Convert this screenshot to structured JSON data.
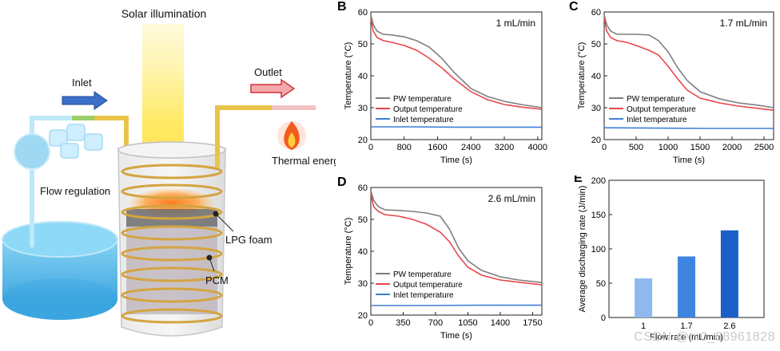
{
  "illustration": {
    "solar_label": "Solar illumination",
    "inlet_label": "Inlet",
    "outlet_label": "Outlet",
    "flow_label": "Flow regulation",
    "thermal_label": "Thermal energy",
    "lpg_label": "LPG foam",
    "pcm_label": "PCM"
  },
  "watermark": "CSDN @m0_68961828",
  "chart_data": [
    {
      "panel": "B",
      "type": "line",
      "annotation": "1 mL/min",
      "xlabel": "Time (s)",
      "ylabel": "Temperature (°C)",
      "xlim": [
        0,
        4100
      ],
      "ylim": [
        20,
        60
      ],
      "xticks": [
        0,
        800,
        1600,
        2400,
        3200,
        4000
      ],
      "yticks": [
        20,
        30,
        40,
        50,
        60
      ],
      "legend_position": "bottom-left",
      "series": [
        {
          "name": "PW temperature",
          "color": "#7f7f7f",
          "x": [
            0,
            60,
            150,
            300,
            500,
            800,
            1100,
            1400,
            1700,
            2000,
            2400,
            2800,
            3200,
            3600,
            4100
          ],
          "y": [
            59,
            56,
            54,
            53,
            52.8,
            52.2,
            51,
            49,
            45.5,
            41,
            36,
            33.5,
            32,
            31,
            30
          ]
        },
        {
          "name": "Output temperature",
          "color": "#e8464b",
          "x": [
            0,
            60,
            150,
            300,
            500,
            800,
            1100,
            1400,
            1700,
            2000,
            2400,
            2800,
            3200,
            3600,
            4100
          ],
          "y": [
            58,
            54,
            52,
            51,
            50.5,
            49.5,
            48,
            45.5,
            42.5,
            39,
            35,
            32.5,
            31,
            30.2,
            29.5
          ]
        },
        {
          "name": "Inlet temperature",
          "color": "#3f7fd6",
          "x": [
            0,
            1000,
            2000,
            3000,
            4100
          ],
          "y": [
            24,
            24,
            23.9,
            23.9,
            23.9
          ]
        }
      ]
    },
    {
      "panel": "C",
      "type": "line",
      "annotation": "1.7 mL/min",
      "xlabel": "Time (s)",
      "ylabel": "Temperature (°C)",
      "xlim": [
        0,
        2650
      ],
      "ylim": [
        20,
        60
      ],
      "xticks": [
        0,
        500,
        1000,
        1500,
        2000,
        2500
      ],
      "yticks": [
        20,
        30,
        40,
        50,
        60
      ],
      "legend_position": "bottom-left",
      "series": [
        {
          "name": "PW temperature",
          "color": "#7f7f7f",
          "x": [
            0,
            40,
            100,
            200,
            350,
            500,
            700,
            850,
            1000,
            1150,
            1300,
            1500,
            1800,
            2100,
            2400,
            2650
          ],
          "y": [
            59,
            56,
            54,
            53,
            53,
            53,
            52.8,
            51,
            47.5,
            42.5,
            38.5,
            35,
            32.8,
            31.5,
            30.8,
            30
          ]
        },
        {
          "name": "Output temperature",
          "color": "#e8464b",
          "x": [
            0,
            40,
            100,
            200,
            350,
            500,
            700,
            850,
            1000,
            1150,
            1300,
            1500,
            1800,
            2100,
            2400,
            2650
          ],
          "y": [
            58,
            54,
            52,
            51,
            50.5,
            49.5,
            48,
            46.5,
            43,
            39,
            35.5,
            33,
            31.5,
            30.5,
            29.8,
            29.2
          ]
        },
        {
          "name": "Inlet temperature",
          "color": "#3f7fd6",
          "x": [
            0,
            800,
            1600,
            2650
          ],
          "y": [
            23.7,
            23.6,
            23.5,
            23.5
          ]
        }
      ]
    },
    {
      "panel": "D",
      "type": "line",
      "annotation": "2.6 mL/min",
      "xlabel": "Time (s)",
      "ylabel": "Temperature (°C)",
      "xlim": [
        0,
        1850
      ],
      "ylim": [
        20,
        60
      ],
      "xticks": [
        0,
        350,
        700,
        1050,
        1400,
        1750
      ],
      "yticks": [
        20,
        30,
        40,
        50,
        60
      ],
      "legend_position": "bottom-left",
      "series": [
        {
          "name": "PW temperature",
          "color": "#7f7f7f",
          "x": [
            0,
            30,
            80,
            150,
            300,
            450,
            600,
            750,
            850,
            950,
            1050,
            1200,
            1400,
            1600,
            1850
          ],
          "y": [
            59,
            56,
            54,
            53,
            52.8,
            52.5,
            52,
            51,
            47,
            41,
            37,
            34,
            32,
            31,
            30.2
          ]
        },
        {
          "name": "Output temperature",
          "color": "#e8464b",
          "x": [
            0,
            30,
            80,
            150,
            300,
            450,
            600,
            750,
            850,
            950,
            1050,
            1200,
            1400,
            1600,
            1850
          ],
          "y": [
            58,
            54,
            52.5,
            51.5,
            51,
            50,
            48.5,
            46,
            43,
            38.5,
            35,
            32.5,
            31,
            30.3,
            29.5
          ]
        },
        {
          "name": "Inlet temperature",
          "color": "#3f7fd6",
          "x": [
            0,
            600,
            1200,
            1850
          ],
          "y": [
            23,
            23,
            23.1,
            23.1
          ]
        }
      ]
    },
    {
      "panel": "E",
      "type": "bar",
      "categories": [
        "1",
        "1.7",
        "2.6"
      ],
      "values": [
        57,
        89,
        127
      ],
      "colors": [
        "#8fb8ee",
        "#3f85e0",
        "#1a5fc8"
      ],
      "xlabel": "Flow rate (mL/min)",
      "ylabel": "Average discharging rate (J/min)",
      "ylim": [
        0,
        200
      ],
      "yticks": [
        0,
        50,
        100,
        150,
        200
      ]
    }
  ]
}
